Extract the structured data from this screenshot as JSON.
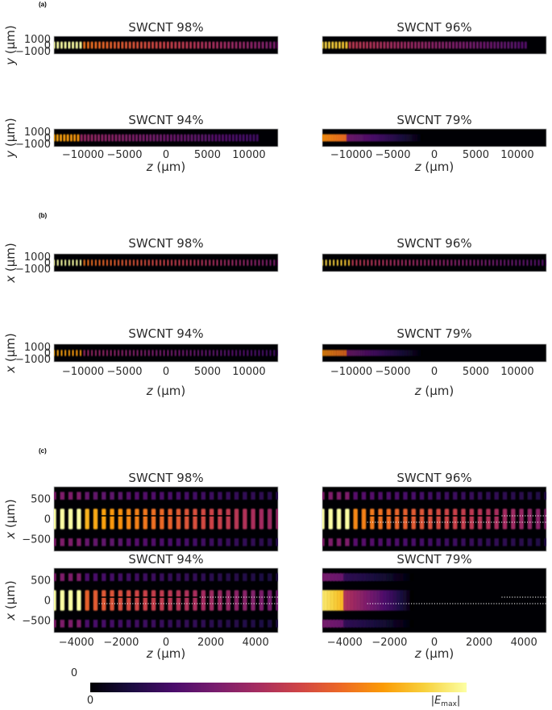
{
  "sections": [
    {
      "tag": "(a)",
      "axis": "y",
      "ylabel_var": "y",
      "xlabel_var": "z",
      "unit": " (μm)",
      "xlim": [
        -13500,
        13500
      ],
      "ylim": [
        -1500,
        1500
      ],
      "yticks": [
        {
          "v": 1000,
          "t": "1000"
        },
        {
          "v": 0,
          "t": "0"
        },
        {
          "v": -1000,
          "t": "−1000"
        }
      ],
      "xticks": [
        {
          "v": -10000,
          "t": "−10000"
        },
        {
          "v": -5000,
          "t": "−5000"
        },
        {
          "v": 0,
          "t": "0"
        },
        {
          "v": 5000,
          "t": "5000"
        },
        {
          "v": 10000,
          "t": "10000"
        }
      ],
      "panels": [
        {
          "title": "SWCNT 98%"
        },
        {
          "title": "SWCNT 96%"
        },
        {
          "title": "SWCNT 94%"
        },
        {
          "title": "SWCNT 79%"
        }
      ]
    },
    {
      "tag": "(b)",
      "axis": "x",
      "ylabel_var": "x",
      "xlabel_var": "z",
      "unit": " (μm)",
      "xlim": [
        -13500,
        13500
      ],
      "ylim": [
        -1500,
        1500
      ],
      "yticks": [
        {
          "v": 1000,
          "t": "1000"
        },
        {
          "v": 0,
          "t": "0"
        },
        {
          "v": -1000,
          "t": "−1000"
        }
      ],
      "xticks": [
        {
          "v": -10000,
          "t": "−10000"
        },
        {
          "v": -5000,
          "t": "−5000"
        },
        {
          "v": 0,
          "t": "0"
        },
        {
          "v": 5000,
          "t": "5000"
        },
        {
          "v": 10000,
          "t": "10000"
        }
      ],
      "panels": [
        {
          "title": "SWCNT 98%"
        },
        {
          "title": "SWCNT 96%"
        },
        {
          "title": "SWCNT 94%"
        },
        {
          "title": "SWCNT 79%"
        }
      ]
    },
    {
      "tag": "(c)",
      "axis": "x",
      "ylabel_var": "x",
      "xlabel_var": "z",
      "unit": " (μm)",
      "xlim": [
        -5000,
        5000
      ],
      "ylim": [
        -800,
        800
      ],
      "yticks": [
        {
          "v": 500,
          "t": "500"
        },
        {
          "v": 0,
          "t": "0"
        },
        {
          "v": -500,
          "t": "−500"
        }
      ],
      "xticks": [
        {
          "v": -4000,
          "t": "−4000"
        },
        {
          "v": -2000,
          "t": "−2000"
        },
        {
          "v": 0,
          "t": "0"
        },
        {
          "v": 2000,
          "t": "2000"
        },
        {
          "v": 4000,
          "t": "4000"
        }
      ],
      "panels": [
        {
          "title": "SWCNT 98%"
        },
        {
          "title": "SWCNT 96%"
        },
        {
          "title": "SWCNT 94%"
        },
        {
          "title": "SWCNT 79%"
        }
      ]
    }
  ],
  "colorbar": {
    "top_label": "0",
    "min_label": "0",
    "max_label_var": "E",
    "max_label_sub": "max",
    "colormap": "inferno",
    "stops": [
      "#000004",
      "#1b0c41",
      "#4a0c6b",
      "#781c6d",
      "#a52c60",
      "#cf4446",
      "#ed6925",
      "#fb9b06",
      "#f7d13d",
      "#fcffa4"
    ]
  },
  "chart_data": [
    {
      "type": "heatmap",
      "section": "(a)",
      "title": "SWCNT 98%",
      "xlabel": "z (μm)",
      "ylabel": "y (μm)",
      "xlim": [
        -13500,
        13500
      ],
      "ylim": [
        -1500,
        1500
      ],
      "value_label": "|E|",
      "field_extent_z": [
        -13500,
        13500
      ],
      "relative_intensity": 0.75
    },
    {
      "type": "heatmap",
      "section": "(a)",
      "title": "SWCNT 96%",
      "xlabel": "z (μm)",
      "ylabel": "y (μm)",
      "xlim": [
        -13500,
        13500
      ],
      "ylim": [
        -1500,
        1500
      ],
      "value_label": "|E|",
      "field_extent_z": [
        -13500,
        11000
      ],
      "relative_intensity": 0.55
    },
    {
      "type": "heatmap",
      "section": "(a)",
      "title": "SWCNT 94%",
      "xlabel": "z (μm)",
      "ylabel": "y (μm)",
      "xlim": [
        -13500,
        13500
      ],
      "ylim": [
        -1500,
        1500
      ],
      "value_label": "|E|",
      "field_extent_z": [
        -13500,
        11000
      ],
      "relative_intensity": 0.45
    },
    {
      "type": "heatmap",
      "section": "(a)",
      "title": "SWCNT 79%",
      "xlabel": "z (μm)",
      "ylabel": "y (μm)",
      "xlim": [
        -13500,
        13500
      ],
      "ylim": [
        -1500,
        1500
      ],
      "value_label": "|E|",
      "field_extent_z": [
        -13500,
        -1500
      ],
      "relative_intensity": 0.4
    },
    {
      "type": "heatmap",
      "section": "(b)",
      "title": "SWCNT 98%",
      "xlabel": "z (μm)",
      "ylabel": "x (μm)",
      "xlim": [
        -13500,
        13500
      ],
      "ylim": [
        -1500,
        1500
      ],
      "value_label": "|E|",
      "field_extent_z": [
        -13500,
        13500
      ],
      "relative_intensity": 0.75
    },
    {
      "type": "heatmap",
      "section": "(b)",
      "title": "SWCNT 96%",
      "xlabel": "z (μm)",
      "ylabel": "x (μm)",
      "xlim": [
        -13500,
        13500
      ],
      "ylim": [
        -1500,
        1500
      ],
      "value_label": "|E|",
      "field_extent_z": [
        -13500,
        13500
      ],
      "relative_intensity": 0.55
    },
    {
      "type": "heatmap",
      "section": "(b)",
      "title": "SWCNT 94%",
      "xlabel": "z (μm)",
      "ylabel": "x (μm)",
      "xlim": [
        -13500,
        13500
      ],
      "ylim": [
        -1500,
        1500
      ],
      "value_label": "|E|",
      "field_extent_z": [
        -13500,
        13500
      ],
      "relative_intensity": 0.45
    },
    {
      "type": "heatmap",
      "section": "(b)",
      "title": "SWCNT 79%",
      "xlabel": "z (μm)",
      "ylabel": "x (μm)",
      "xlim": [
        -13500,
        13500
      ],
      "ylim": [
        -1500,
        1500
      ],
      "value_label": "|E|",
      "field_extent_z": [
        -13500,
        -1500
      ],
      "relative_intensity": 0.4
    },
    {
      "type": "heatmap",
      "section": "(c)",
      "title": "SWCNT 98%",
      "xlabel": "z (μm)",
      "ylabel": "x (μm)",
      "xlim": [
        -5000,
        5000
      ],
      "ylim": [
        -800,
        800
      ],
      "value_label": "|E|",
      "field_extent_z": [
        -5000,
        5000
      ],
      "relative_intensity": 0.9,
      "marker_lines": [
        {
          "style": "solid",
          "color": "black",
          "x": 80,
          "z": [
            -3000,
            3000
          ]
        }
      ]
    },
    {
      "type": "heatmap",
      "section": "(c)",
      "title": "SWCNT 96%",
      "xlabel": "z (μm)",
      "ylabel": "x (μm)",
      "xlim": [
        -5000,
        5000
      ],
      "ylim": [
        -800,
        800
      ],
      "value_label": "|E|",
      "field_extent_z": [
        -5000,
        5000
      ],
      "relative_intensity": 0.8,
      "marker_lines": [
        {
          "style": "solid",
          "color": "black",
          "x": 80,
          "z": [
            -3000,
            3000
          ]
        },
        {
          "style": "dotted",
          "color": "white",
          "x": 80,
          "z": [
            3000,
            5000
          ]
        },
        {
          "style": "dotted",
          "color": "white",
          "x": -80,
          "z": [
            -3000,
            5000
          ]
        }
      ]
    },
    {
      "type": "heatmap",
      "section": "(c)",
      "title": "SWCNT 94%",
      "xlabel": "z (μm)",
      "ylabel": "x (μm)",
      "xlim": [
        -5000,
        5000
      ],
      "ylim": [
        -800,
        800
      ],
      "value_label": "|E|",
      "field_extent_z": [
        -5000,
        5000
      ],
      "relative_intensity": 0.7,
      "marker_lines": [
        {
          "style": "solid",
          "color": "black",
          "x": 80,
          "z": [
            -3000,
            1500
          ]
        },
        {
          "style": "dotted",
          "color": "white",
          "x": 80,
          "z": [
            1500,
            5000
          ]
        },
        {
          "style": "dotted",
          "color": "white",
          "x": -80,
          "z": [
            -3000,
            5000
          ]
        }
      ]
    },
    {
      "type": "heatmap",
      "section": "(c)",
      "title": "SWCNT 79%",
      "xlabel": "z (μm)",
      "ylabel": "x (μm)",
      "xlim": [
        -5000,
        5000
      ],
      "ylim": [
        -800,
        800
      ],
      "value_label": "|E|",
      "field_extent_z": [
        -5000,
        -1000
      ],
      "relative_intensity": 0.6,
      "marker_lines": [
        {
          "style": "dotted",
          "color": "white",
          "x": 80,
          "z": [
            3000,
            5000
          ]
        },
        {
          "style": "dotted",
          "color": "white",
          "x": -80,
          "z": [
            -3000,
            5000
          ]
        }
      ]
    }
  ]
}
